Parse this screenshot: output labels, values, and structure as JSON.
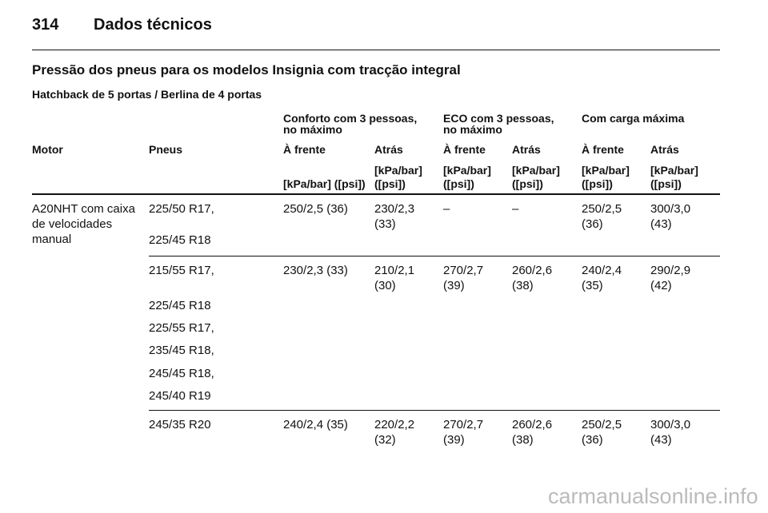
{
  "header": {
    "page_number": "314",
    "title": "Dados técnicos"
  },
  "section_title": "Pressão dos pneus para os modelos Insignia com tracção integral",
  "subtitle": "Hatchback de 5 portas / Berlina de 4 portas",
  "table": {
    "group_headers": [
      "Conforto com 3 pessoas,\nno máximo",
      "ECO com 3 pessoas,\nno máximo",
      "Com carga máxima"
    ],
    "columns": [
      "Motor",
      "Pneus",
      "À frente",
      "Atrás",
      "À frente",
      "Atrás",
      "À frente",
      "Atrás"
    ],
    "units": [
      "[kPa/bar] ([psi])",
      "[kPa/bar]\n([psi])",
      "[kPa/bar]\n([psi])",
      "[kPa/bar]\n([psi])",
      "[kPa/bar]\n([psi])",
      "[kPa/bar]\n([psi])"
    ],
    "rows": [
      {
        "motor": "A20NHT com caixa\nde velocidades\nmanual",
        "tyres": [
          "225/50 R17,",
          "225/45 R18"
        ],
        "values": [
          "250/2,5 (36)",
          "230/2,3\n(33)",
          "–",
          "–",
          "250/2,5\n(36)",
          "300/3,0\n(43)"
        ]
      },
      {
        "tyres": [
          "215/55 R17,",
          "225/45 R18",
          "225/55 R17,",
          "235/45 R18,",
          "245/45 R18,",
          "245/40 R19"
        ],
        "values": [
          "230/2,3 (33)",
          "210/2,1\n(30)",
          "270/2,7\n(39)",
          "260/2,6\n(38)",
          "240/2,4\n(35)",
          "290/2,9\n(42)"
        ]
      },
      {
        "tyres": [
          "245/35 R20"
        ],
        "values": [
          "240/2,4 (35)",
          "220/2,2\n(32)",
          "270/2,7\n(39)",
          "260/2,6\n(38)",
          "250/2,5\n(36)",
          "300/3,0\n(43)"
        ]
      }
    ]
  },
  "watermark": "carmanualsonline.info"
}
